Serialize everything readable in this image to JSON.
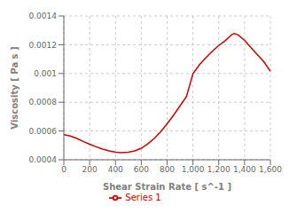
{
  "chart_data": {
    "type": "line",
    "xlabel": "Shear Strain Rate [ s^-1 ]",
    "ylabel": "Viscosity [ Pa s ]",
    "x": [
      0,
      50,
      100,
      150,
      200,
      250,
      300,
      350,
      400,
      450,
      500,
      550,
      600,
      650,
      700,
      750,
      800,
      850,
      900,
      950,
      1000,
      1050,
      1100,
      1150,
      1200,
      1250,
      1300,
      1320,
      1350,
      1400,
      1450,
      1500,
      1550,
      1600
    ],
    "series": [
      {
        "name": "Series 1",
        "color": "#cc0000",
        "values": [
          0.000575,
          0.000565,
          0.000548,
          0.000527,
          0.000508,
          0.00049,
          0.000474,
          0.000462,
          0.000453,
          0.00045,
          0.000452,
          0.000462,
          0.00048,
          0.00051,
          0.000548,
          0.000595,
          0.00065,
          0.00071,
          0.000775,
          0.00084,
          0.000998,
          0.00106,
          0.00111,
          0.001155,
          0.001195,
          0.001228,
          0.00127,
          0.001278,
          0.001268,
          0.00123,
          0.00118,
          0.00113,
          0.00108,
          0.001015
        ]
      }
    ],
    "xlim": [
      0,
      1600
    ],
    "ylim": [
      0.0004,
      0.0014
    ],
    "xticks": [
      0,
      200,
      400,
      600,
      800,
      {
        "value": 1000,
        "label": "1,000"
      },
      {
        "value": 1200,
        "label": "1,200"
      },
      {
        "value": 1400,
        "label": "1,400"
      },
      {
        "value": 1600,
        "label": "1,600"
      }
    ],
    "yticks": [
      0.0004,
      0.0006,
      0.0008,
      0.001,
      0.0012,
      0.0014
    ],
    "grid": true,
    "legend": "bottom"
  }
}
